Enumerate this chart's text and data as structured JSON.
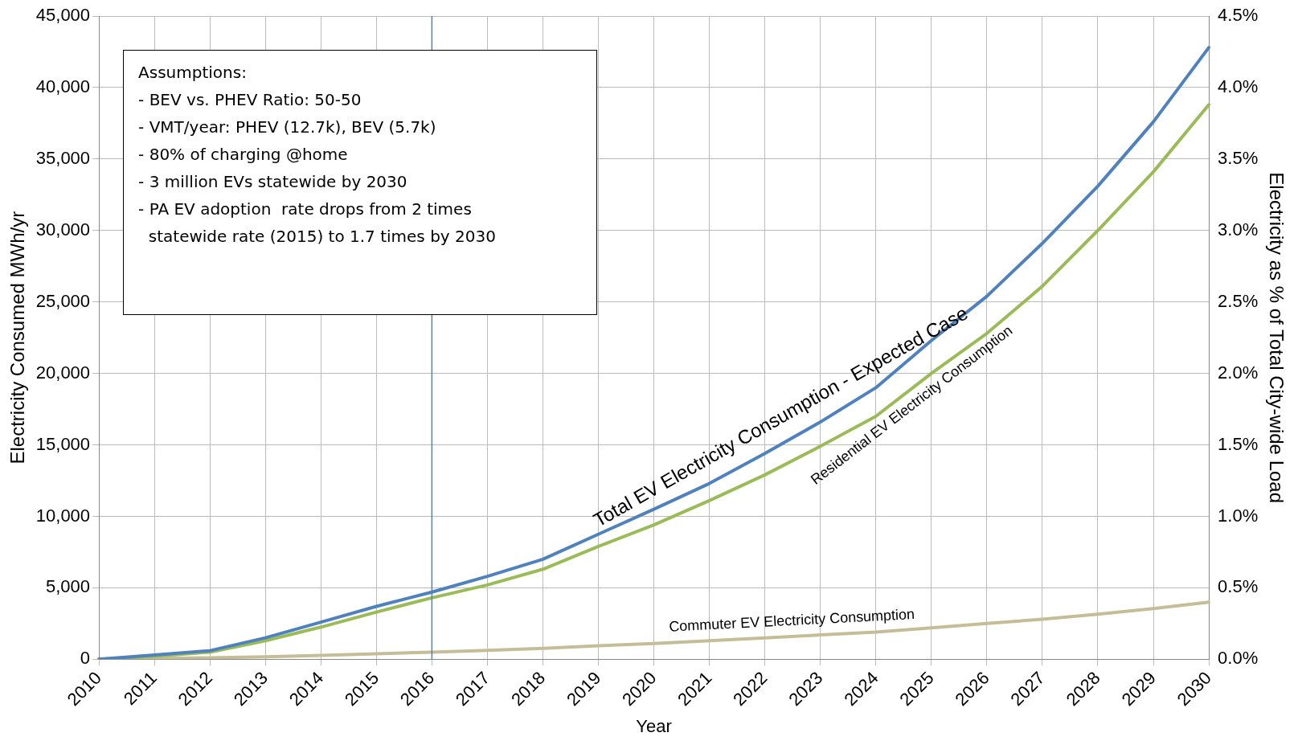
{
  "chart_data": {
    "type": "line",
    "xlabel": "Year",
    "ylabel": "Electricity Consumed MWh/yr",
    "y2label": "Electricity as % of Total City-wide Load",
    "categories": [
      "2010",
      "2011",
      "2012",
      "2013",
      "2014",
      "2015",
      "2016",
      "2017",
      "2018",
      "2019",
      "2020",
      "2021",
      "2022",
      "2023",
      "2024",
      "2025",
      "2026",
      "2027",
      "2028",
      "2029",
      "2030"
    ],
    "series": [
      {
        "name": "Total EV Electricity Consumption - Expected Case",
        "color": "#4f81bd",
        "values": [
          0,
          300,
          600,
          1500,
          2600,
          3700,
          4700,
          5800,
          7000,
          8750,
          10500,
          12300,
          14400,
          16600,
          19000,
          22300,
          25400,
          29100,
          33100,
          37600,
          42800
        ]
      },
      {
        "name": "Residential EV Electricity Consumption",
        "color": "#9bbb59",
        "values": [
          0,
          200,
          500,
          1300,
          2250,
          3300,
          4300,
          5200,
          6300,
          7900,
          9400,
          11100,
          12900,
          14900,
          17000,
          20000,
          22800,
          26100,
          30000,
          34100,
          38800
        ]
      },
      {
        "name": "Commuter EV Electricity Consumption",
        "color": "#c4bd97",
        "values": [
          0,
          50,
          100,
          170,
          270,
          380,
          500,
          620,
          770,
          950,
          1100,
          1300,
          1500,
          1700,
          1900,
          2200,
          2500,
          2800,
          3150,
          3550,
          4000
        ]
      }
    ],
    "ylim": [
      0,
      45000
    ],
    "yticks": [
      {
        "value": 0,
        "label": "0"
      },
      {
        "value": 5000,
        "label": "5,000"
      },
      {
        "value": 10000,
        "label": "10,000"
      },
      {
        "value": 15000,
        "label": "15,000"
      },
      {
        "value": 20000,
        "label": "20,000"
      },
      {
        "value": 25000,
        "label": "25,000"
      },
      {
        "value": 30000,
        "label": "30,000"
      },
      {
        "value": 35000,
        "label": "35,000"
      },
      {
        "value": 40000,
        "label": "40,000"
      },
      {
        "value": 45000,
        "label": "45,000"
      }
    ],
    "y2lim": [
      0,
      4.5
    ],
    "y2ticks": [
      {
        "value": 0,
        "label": "0.0%"
      },
      {
        "value": 0.5,
        "label": "0.5%"
      },
      {
        "value": 1,
        "label": "1.0%"
      },
      {
        "value": 1.5,
        "label": "1.5%"
      },
      {
        "value": 2,
        "label": "2.0%"
      },
      {
        "value": 2.5,
        "label": "2.5%"
      },
      {
        "value": 3,
        "label": "3.0%"
      },
      {
        "value": 3.5,
        "label": "3.5%"
      },
      {
        "value": 4,
        "label": "4.0%"
      },
      {
        "value": 4.5,
        "label": "4.5%"
      }
    ],
    "ref_lines": [
      {
        "axis": "x",
        "value": "2016",
        "color": "#4f81bd"
      }
    ],
    "annotations": [
      "Assumptions:",
      "- BEV vs. PHEV Ratio: 50-50",
      "- VMT/year: PHEV (12.7k), BEV (5.7k)",
      "- 80% of charging @home",
      "- 3 million EVs statewide by 2030",
      "- PA EV adoption  rate drops from 2 times",
      "  statewide rate (2015) to 1.7 times by 2030"
    ],
    "grid": true,
    "legend": false,
    "marker": "none",
    "line_style": "solid"
  }
}
